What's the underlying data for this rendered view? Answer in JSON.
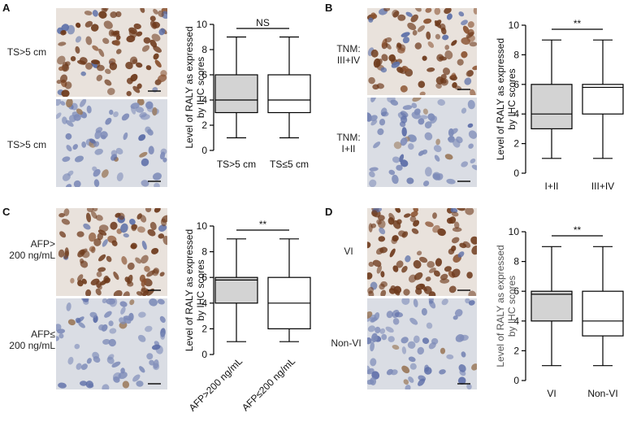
{
  "panels": [
    {
      "letter": "A",
      "images": [
        {
          "label": "TS>5 cm",
          "stain": "brown"
        },
        {
          "label": "TS>5 cm",
          "stain": "blue"
        }
      ]
    },
    {
      "letter": "B",
      "images": [
        {
          "label": "TNM:\nIII+IV",
          "stain": "brown"
        },
        {
          "label": "TNM:\nI+II",
          "stain": "blue"
        }
      ]
    },
    {
      "letter": "C",
      "images": [
        {
          "label": "AFP>\n200 ng/mL",
          "stain": "brown"
        },
        {
          "label": "AFP≤\n200 ng/mL",
          "stain": "blue"
        }
      ]
    },
    {
      "letter": "D",
      "images": [
        {
          "label": "VI",
          "stain": "brown"
        },
        {
          "label": "Non-VI",
          "stain": "blue"
        }
      ]
    }
  ],
  "colors": {
    "box_fill_filled": "#d3d3d3",
    "box_fill_open": "#ffffff",
    "stroke": "#000000",
    "ylabel_D": "#555555"
  },
  "chart_data": [
    {
      "type": "box",
      "ylabel": "Level of RALY as expressed\nby IHC scores",
      "ylim": [
        0,
        10
      ],
      "yticks": [
        0,
        2,
        4,
        6,
        8,
        10
      ],
      "categories": [
        "TS>5 cm",
        "TS≤5 cm"
      ],
      "rotated_xticks": false,
      "boxes": [
        {
          "min": 1,
          "q1": 3,
          "median": 4,
          "q3": 6,
          "max": 9,
          "filled": true
        },
        {
          "min": 1,
          "q1": 3,
          "median": 4,
          "q3": 6,
          "max": 9,
          "filled": false
        }
      ],
      "significance": "NS"
    },
    {
      "type": "box",
      "ylabel": "Level of RALY as expressed\nby IHC scores",
      "ylim": [
        0,
        10
      ],
      "yticks": [
        0,
        2,
        4,
        6,
        8,
        10
      ],
      "categories": [
        "I+II",
        "III+IV"
      ],
      "rotated_xticks": false,
      "boxes": [
        {
          "min": 1,
          "q1": 3,
          "median": 4,
          "q3": 6,
          "max": 9,
          "filled": true
        },
        {
          "min": 1,
          "q1": 4,
          "median": 5.8,
          "q3": 6,
          "max": 9,
          "filled": false
        }
      ],
      "significance": "**"
    },
    {
      "type": "box",
      "ylabel": "Level of RALY as expressed\nby IHC scores",
      "ylim": [
        0,
        10
      ],
      "yticks": [
        0,
        2,
        4,
        6,
        8,
        10
      ],
      "categories": [
        "AFP>200 ng/mL",
        "AFP≤200 ng/mL"
      ],
      "rotated_xticks": true,
      "boxes": [
        {
          "min": 1,
          "q1": 4,
          "median": 5.8,
          "q3": 6,
          "max": 9,
          "filled": true
        },
        {
          "min": 1,
          "q1": 2,
          "median": 4,
          "q3": 6,
          "max": 9,
          "filled": false
        }
      ],
      "significance": "**"
    },
    {
      "type": "box",
      "ylabel": "Level of RALY as expressed\nby IHC scores",
      "ylim": [
        0,
        10
      ],
      "yticks": [
        0,
        2,
        4,
        6,
        8,
        10
      ],
      "categories": [
        "VI",
        "Non-VI"
      ],
      "rotated_xticks": false,
      "boxes": [
        {
          "min": 1,
          "q1": 4,
          "median": 5.8,
          "q3": 6,
          "max": 9,
          "filled": true
        },
        {
          "min": 1,
          "q1": 3,
          "median": 4,
          "q3": 6,
          "max": 9,
          "filled": false
        }
      ],
      "significance": "**"
    }
  ]
}
